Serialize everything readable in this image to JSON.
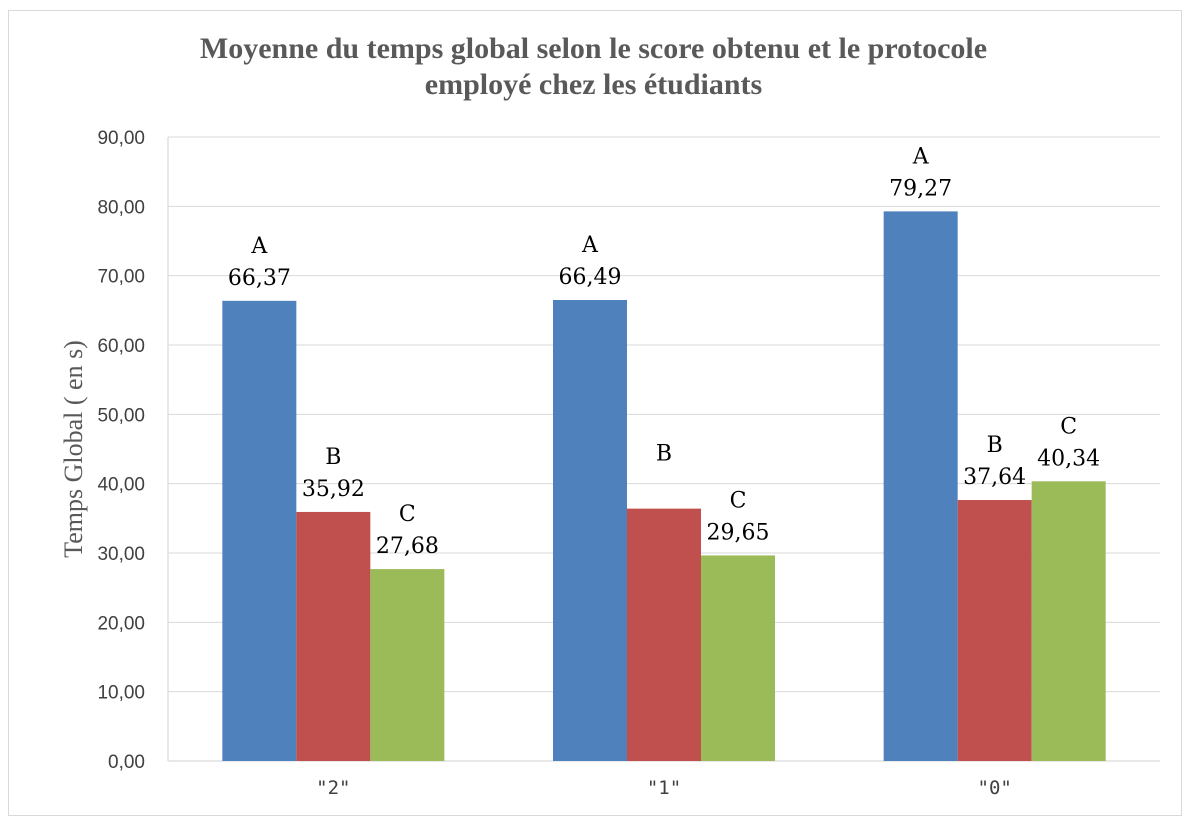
{
  "chart_data": {
    "type": "bar",
    "title": [
      "Moyenne du temps global selon le score obtenu et le protocole",
      "employé chez les étudiants"
    ],
    "ylabel": "Temps Global ( en s)",
    "xlabel": "",
    "categories": [
      "\"2\"",
      "\"1\"",
      "\"0\""
    ],
    "ylim": [
      0,
      90
    ],
    "ytick_step": 10,
    "ytick_labels": [
      "0,00",
      "10,00",
      "20,00",
      "30,00",
      "40,00",
      "50,00",
      "60,00",
      "70,00",
      "80,00",
      "90,00"
    ],
    "grid": true,
    "legend": "none",
    "series": [
      {
        "values": [
          66.37,
          66.49,
          79.27
        ],
        "color": "#4f81bd",
        "data_labels": [
          {
            "letter": "A",
            "value": "66,37"
          },
          {
            "letter": "A",
            "value": "66,49"
          },
          {
            "letter": "A",
            "value": "79,27"
          }
        ]
      },
      {
        "values": [
          35.92,
          36.4,
          37.64
        ],
        "color": "#c0504d",
        "data_labels": [
          {
            "letter": "B",
            "value": "35,92"
          },
          {
            "letter": "B",
            "value": ""
          },
          {
            "letter": "B",
            "value": "37,64"
          }
        ]
      },
      {
        "values": [
          27.68,
          29.65,
          40.34
        ],
        "color": "#9bbb59",
        "data_labels": [
          {
            "letter": "C",
            "value": "27,68"
          },
          {
            "letter": "C",
            "value": "29,65"
          },
          {
            "letter": "C",
            "value": "40,34"
          }
        ]
      }
    ]
  }
}
